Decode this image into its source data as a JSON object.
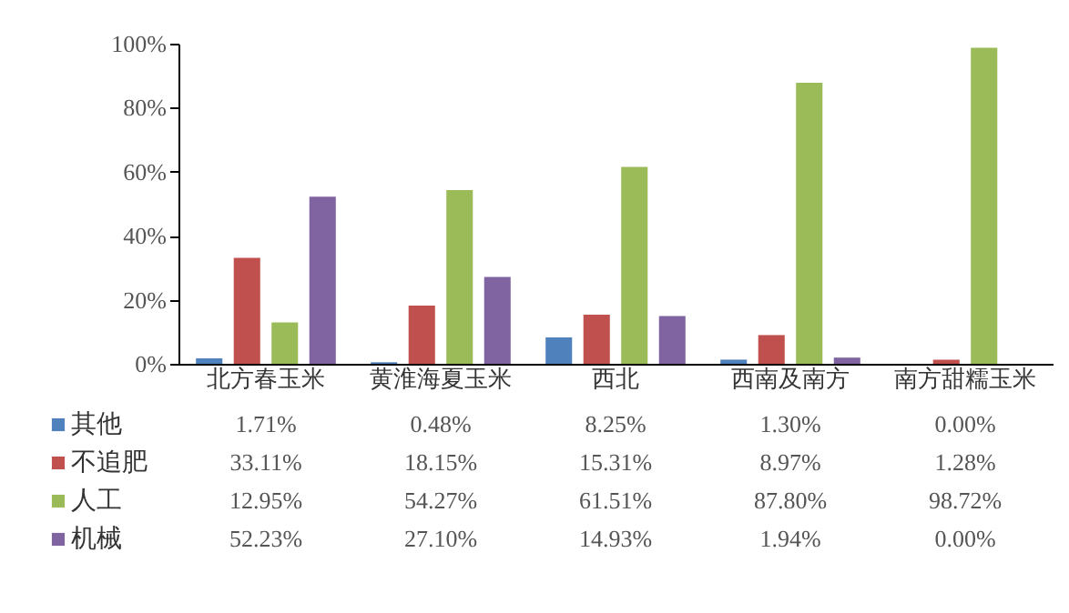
{
  "chart_data": {
    "type": "bar",
    "categories": [
      "北方春玉米",
      "黄淮海夏玉米",
      "西北",
      "西南及南方",
      "南方甜糯玉米"
    ],
    "series": [
      {
        "name": "其他",
        "color": "#4f81bd",
        "values": [
          1.71,
          0.48,
          8.25,
          1.3,
          0.0
        ],
        "value_labels": [
          "1.71%",
          "0.48%",
          "8.25%",
          "1.30%",
          "0.00%"
        ]
      },
      {
        "name": "不追肥",
        "color": "#c0504d",
        "values": [
          33.11,
          18.15,
          15.31,
          8.97,
          1.28
        ],
        "value_labels": [
          "33.11%",
          "18.15%",
          "15.31%",
          "8.97%",
          "1.28%"
        ]
      },
      {
        "name": "人工",
        "color": "#9bbb59",
        "values": [
          12.95,
          54.27,
          61.51,
          87.8,
          98.72
        ],
        "value_labels": [
          "12.95%",
          "54.27%",
          "61.51%",
          "87.80%",
          "98.72%"
        ]
      },
      {
        "name": "机械",
        "color": "#8064a2",
        "values": [
          52.23,
          27.1,
          14.93,
          1.94,
          0.0
        ],
        "value_labels": [
          "52.23%",
          "27.10%",
          "14.93%",
          "1.94%",
          "0.00%"
        ]
      }
    ],
    "ylim": [
      0,
      100
    ],
    "yticks": [
      {
        "value": 0,
        "label": "0%"
      },
      {
        "value": 20,
        "label": "20%"
      },
      {
        "value": 40,
        "label": "40%"
      },
      {
        "value": 60,
        "label": "60%"
      },
      {
        "value": 80,
        "label": "80%"
      },
      {
        "value": 100,
        "label": "100%"
      }
    ],
    "grid": false,
    "legend": "bottom left"
  }
}
